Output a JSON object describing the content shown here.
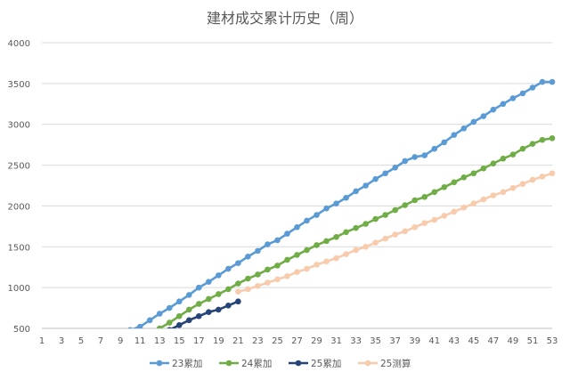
{
  "chart_data": {
    "type": "line",
    "title": "建材成交累计历史（周）",
    "xlabel": "",
    "ylabel": "",
    "ylim": [
      500,
      4000
    ],
    "yticks": [
      500,
      1000,
      1500,
      2000,
      2500,
      3000,
      3500,
      4000
    ],
    "xlim": [
      1,
      53
    ],
    "xticks": [
      1,
      3,
      5,
      7,
      9,
      11,
      13,
      15,
      17,
      19,
      21,
      23,
      25,
      27,
      29,
      31,
      33,
      35,
      37,
      39,
      41,
      43,
      45,
      47,
      49,
      51,
      53
    ],
    "grid": "horizontal",
    "legend_position": "bottom",
    "series": [
      {
        "name": "23累加",
        "color": "#5B9BD5",
        "x": [
          10,
          11,
          12,
          13,
          14,
          15,
          16,
          17,
          18,
          19,
          20,
          21,
          22,
          23,
          24,
          25,
          26,
          27,
          28,
          29,
          30,
          31,
          32,
          33,
          34,
          35,
          36,
          37,
          38,
          39,
          40,
          41,
          42,
          43,
          44,
          45,
          46,
          47,
          48,
          49,
          50,
          51,
          52,
          53
        ],
        "values": [
          480,
          520,
          600,
          680,
          750,
          830,
          910,
          1000,
          1070,
          1150,
          1230,
          1300,
          1380,
          1450,
          1530,
          1580,
          1660,
          1740,
          1820,
          1890,
          1970,
          2030,
          2100,
          2180,
          2250,
          2330,
          2400,
          2470,
          2550,
          2600,
          2620,
          2700,
          2780,
          2870,
          2950,
          3030,
          3100,
          3180,
          3250,
          3320,
          3380,
          3450,
          3520,
          3520
        ]
      },
      {
        "name": "24累加",
        "color": "#70AD47",
        "x": [
          12,
          13,
          14,
          15,
          16,
          17,
          18,
          19,
          20,
          21,
          22,
          23,
          24,
          25,
          26,
          27,
          28,
          29,
          30,
          31,
          32,
          33,
          34,
          35,
          36,
          37,
          38,
          39,
          40,
          41,
          42,
          43,
          44,
          45,
          46,
          47,
          48,
          49,
          50,
          51,
          52,
          53
        ],
        "values": [
          440,
          500,
          570,
          650,
          730,
          800,
          860,
          920,
          980,
          1050,
          1110,
          1160,
          1220,
          1270,
          1340,
          1400,
          1460,
          1520,
          1570,
          1620,
          1680,
          1730,
          1780,
          1840,
          1890,
          1950,
          2010,
          2070,
          2110,
          2170,
          2230,
          2290,
          2350,
          2400,
          2460,
          2520,
          2580,
          2630,
          2700,
          2760,
          2810,
          2830
        ]
      },
      {
        "name": "25累加",
        "color": "#264478",
        "x": [
          14,
          15,
          16,
          17,
          18,
          19,
          20,
          21
        ],
        "values": [
          480,
          540,
          600,
          650,
          700,
          730,
          780,
          830
        ]
      },
      {
        "name": "25测算",
        "color": "#F8CBAD",
        "x": [
          21,
          22,
          23,
          24,
          25,
          26,
          27,
          28,
          29,
          30,
          31,
          32,
          33,
          34,
          35,
          36,
          37,
          38,
          39,
          40,
          41,
          42,
          43,
          44,
          45,
          46,
          47,
          48,
          49,
          50,
          51,
          52,
          53
        ],
        "values": [
          950,
          980,
          1020,
          1060,
          1100,
          1140,
          1190,
          1230,
          1280,
          1320,
          1360,
          1410,
          1460,
          1500,
          1550,
          1600,
          1650,
          1690,
          1740,
          1790,
          1830,
          1880,
          1930,
          1980,
          2030,
          2080,
          2130,
          2170,
          2220,
          2270,
          2320,
          2360,
          2400
        ]
      }
    ]
  }
}
